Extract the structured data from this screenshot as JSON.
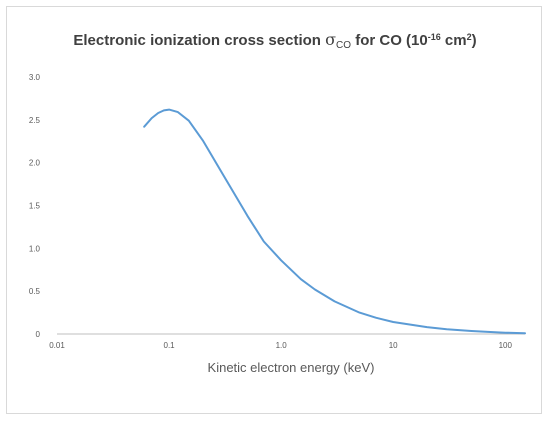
{
  "chart_data": {
    "type": "line",
    "title": {
      "prefix": "Electronic ionization cross section ",
      "symbol": "σ",
      "symbol_sub": "CO",
      "middle": " for CO (10",
      "exp": "-16",
      "unit": " cm",
      "unit_exp": "2",
      "suffix": ")"
    },
    "xlabel": "Kinetic electron energy (keV)",
    "ylabel": "",
    "x_scale": "log",
    "xlim": [
      0.01,
      150
    ],
    "ylim": [
      0,
      3.0
    ],
    "x_ticks": [
      {
        "value": 0.01,
        "label": "0.01"
      },
      {
        "value": 0.1,
        "label": "0.1"
      },
      {
        "value": 1,
        "label": "1.0"
      },
      {
        "value": 10,
        "label": "10"
      },
      {
        "value": 100,
        "label": "100"
      }
    ],
    "y_ticks": [
      {
        "value": 0,
        "label": "0"
      },
      {
        "value": 0.5,
        "label": "0.5"
      },
      {
        "value": 1.0,
        "label": "1.0"
      },
      {
        "value": 1.5,
        "label": "1.5"
      },
      {
        "value": 2.0,
        "label": "2.0"
      },
      {
        "value": 2.5,
        "label": "2.5"
      },
      {
        "value": 3.0,
        "label": "3.0"
      }
    ],
    "grid": false,
    "line_color": "#5b9bd5",
    "axis_color": "#bfbfbf",
    "series": [
      {
        "x": [
          0.06,
          0.07,
          0.08,
          0.09,
          0.1,
          0.12,
          0.15,
          0.2,
          0.3,
          0.5,
          0.7,
          1.0,
          1.5,
          2.0,
          3.0,
          5.0,
          7.0,
          10,
          20,
          30,
          50,
          70,
          100,
          150
        ],
        "y": [
          2.42,
          2.52,
          2.58,
          2.61,
          2.62,
          2.59,
          2.49,
          2.26,
          1.87,
          1.38,
          1.08,
          0.86,
          0.64,
          0.52,
          0.38,
          0.25,
          0.19,
          0.14,
          0.08,
          0.055,
          0.035,
          0.025,
          0.015,
          0.008
        ]
      }
    ]
  }
}
